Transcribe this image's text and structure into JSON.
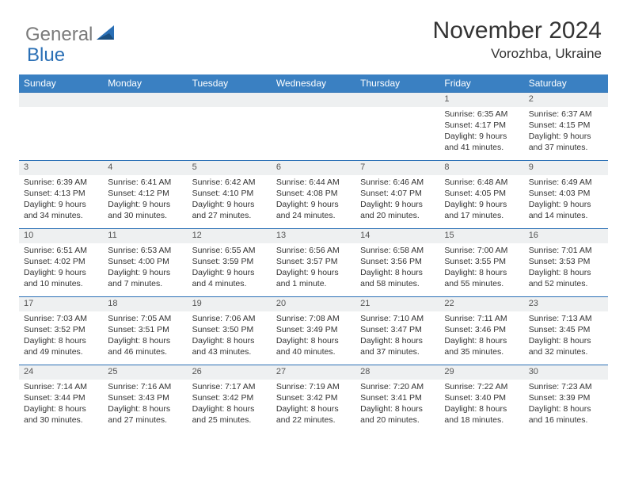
{
  "brand": {
    "part1": "General",
    "part2": "Blue"
  },
  "title": "November 2024",
  "location": "Vorozhba, Ukraine",
  "colors": {
    "header_bg": "#3a80c2",
    "border": "#2a6fb5",
    "daynum_bg": "#eef0f1",
    "text": "#333333"
  },
  "day_headers": [
    "Sunday",
    "Monday",
    "Tuesday",
    "Wednesday",
    "Thursday",
    "Friday",
    "Saturday"
  ],
  "weeks": [
    [
      null,
      null,
      null,
      null,
      null,
      {
        "n": "1",
        "sr": "6:35 AM",
        "ss": "4:17 PM",
        "dl": "9 hours and 41 minutes."
      },
      {
        "n": "2",
        "sr": "6:37 AM",
        "ss": "4:15 PM",
        "dl": "9 hours and 37 minutes."
      }
    ],
    [
      {
        "n": "3",
        "sr": "6:39 AM",
        "ss": "4:13 PM",
        "dl": "9 hours and 34 minutes."
      },
      {
        "n": "4",
        "sr": "6:41 AM",
        "ss": "4:12 PM",
        "dl": "9 hours and 30 minutes."
      },
      {
        "n": "5",
        "sr": "6:42 AM",
        "ss": "4:10 PM",
        "dl": "9 hours and 27 minutes."
      },
      {
        "n": "6",
        "sr": "6:44 AM",
        "ss": "4:08 PM",
        "dl": "9 hours and 24 minutes."
      },
      {
        "n": "7",
        "sr": "6:46 AM",
        "ss": "4:07 PM",
        "dl": "9 hours and 20 minutes."
      },
      {
        "n": "8",
        "sr": "6:48 AM",
        "ss": "4:05 PM",
        "dl": "9 hours and 17 minutes."
      },
      {
        "n": "9",
        "sr": "6:49 AM",
        "ss": "4:03 PM",
        "dl": "9 hours and 14 minutes."
      }
    ],
    [
      {
        "n": "10",
        "sr": "6:51 AM",
        "ss": "4:02 PM",
        "dl": "9 hours and 10 minutes."
      },
      {
        "n": "11",
        "sr": "6:53 AM",
        "ss": "4:00 PM",
        "dl": "9 hours and 7 minutes."
      },
      {
        "n": "12",
        "sr": "6:55 AM",
        "ss": "3:59 PM",
        "dl": "9 hours and 4 minutes."
      },
      {
        "n": "13",
        "sr": "6:56 AM",
        "ss": "3:57 PM",
        "dl": "9 hours and 1 minute."
      },
      {
        "n": "14",
        "sr": "6:58 AM",
        "ss": "3:56 PM",
        "dl": "8 hours and 58 minutes."
      },
      {
        "n": "15",
        "sr": "7:00 AM",
        "ss": "3:55 PM",
        "dl": "8 hours and 55 minutes."
      },
      {
        "n": "16",
        "sr": "7:01 AM",
        "ss": "3:53 PM",
        "dl": "8 hours and 52 minutes."
      }
    ],
    [
      {
        "n": "17",
        "sr": "7:03 AM",
        "ss": "3:52 PM",
        "dl": "8 hours and 49 minutes."
      },
      {
        "n": "18",
        "sr": "7:05 AM",
        "ss": "3:51 PM",
        "dl": "8 hours and 46 minutes."
      },
      {
        "n": "19",
        "sr": "7:06 AM",
        "ss": "3:50 PM",
        "dl": "8 hours and 43 minutes."
      },
      {
        "n": "20",
        "sr": "7:08 AM",
        "ss": "3:49 PM",
        "dl": "8 hours and 40 minutes."
      },
      {
        "n": "21",
        "sr": "7:10 AM",
        "ss": "3:47 PM",
        "dl": "8 hours and 37 minutes."
      },
      {
        "n": "22",
        "sr": "7:11 AM",
        "ss": "3:46 PM",
        "dl": "8 hours and 35 minutes."
      },
      {
        "n": "23",
        "sr": "7:13 AM",
        "ss": "3:45 PM",
        "dl": "8 hours and 32 minutes."
      }
    ],
    [
      {
        "n": "24",
        "sr": "7:14 AM",
        "ss": "3:44 PM",
        "dl": "8 hours and 30 minutes."
      },
      {
        "n": "25",
        "sr": "7:16 AM",
        "ss": "3:43 PM",
        "dl": "8 hours and 27 minutes."
      },
      {
        "n": "26",
        "sr": "7:17 AM",
        "ss": "3:42 PM",
        "dl": "8 hours and 25 minutes."
      },
      {
        "n": "27",
        "sr": "7:19 AM",
        "ss": "3:42 PM",
        "dl": "8 hours and 22 minutes."
      },
      {
        "n": "28",
        "sr": "7:20 AM",
        "ss": "3:41 PM",
        "dl": "8 hours and 20 minutes."
      },
      {
        "n": "29",
        "sr": "7:22 AM",
        "ss": "3:40 PM",
        "dl": "8 hours and 18 minutes."
      },
      {
        "n": "30",
        "sr": "7:23 AM",
        "ss": "3:39 PM",
        "dl": "8 hours and 16 minutes."
      }
    ]
  ],
  "labels": {
    "sunrise": "Sunrise: ",
    "sunset": "Sunset: ",
    "daylight": "Daylight: "
  }
}
